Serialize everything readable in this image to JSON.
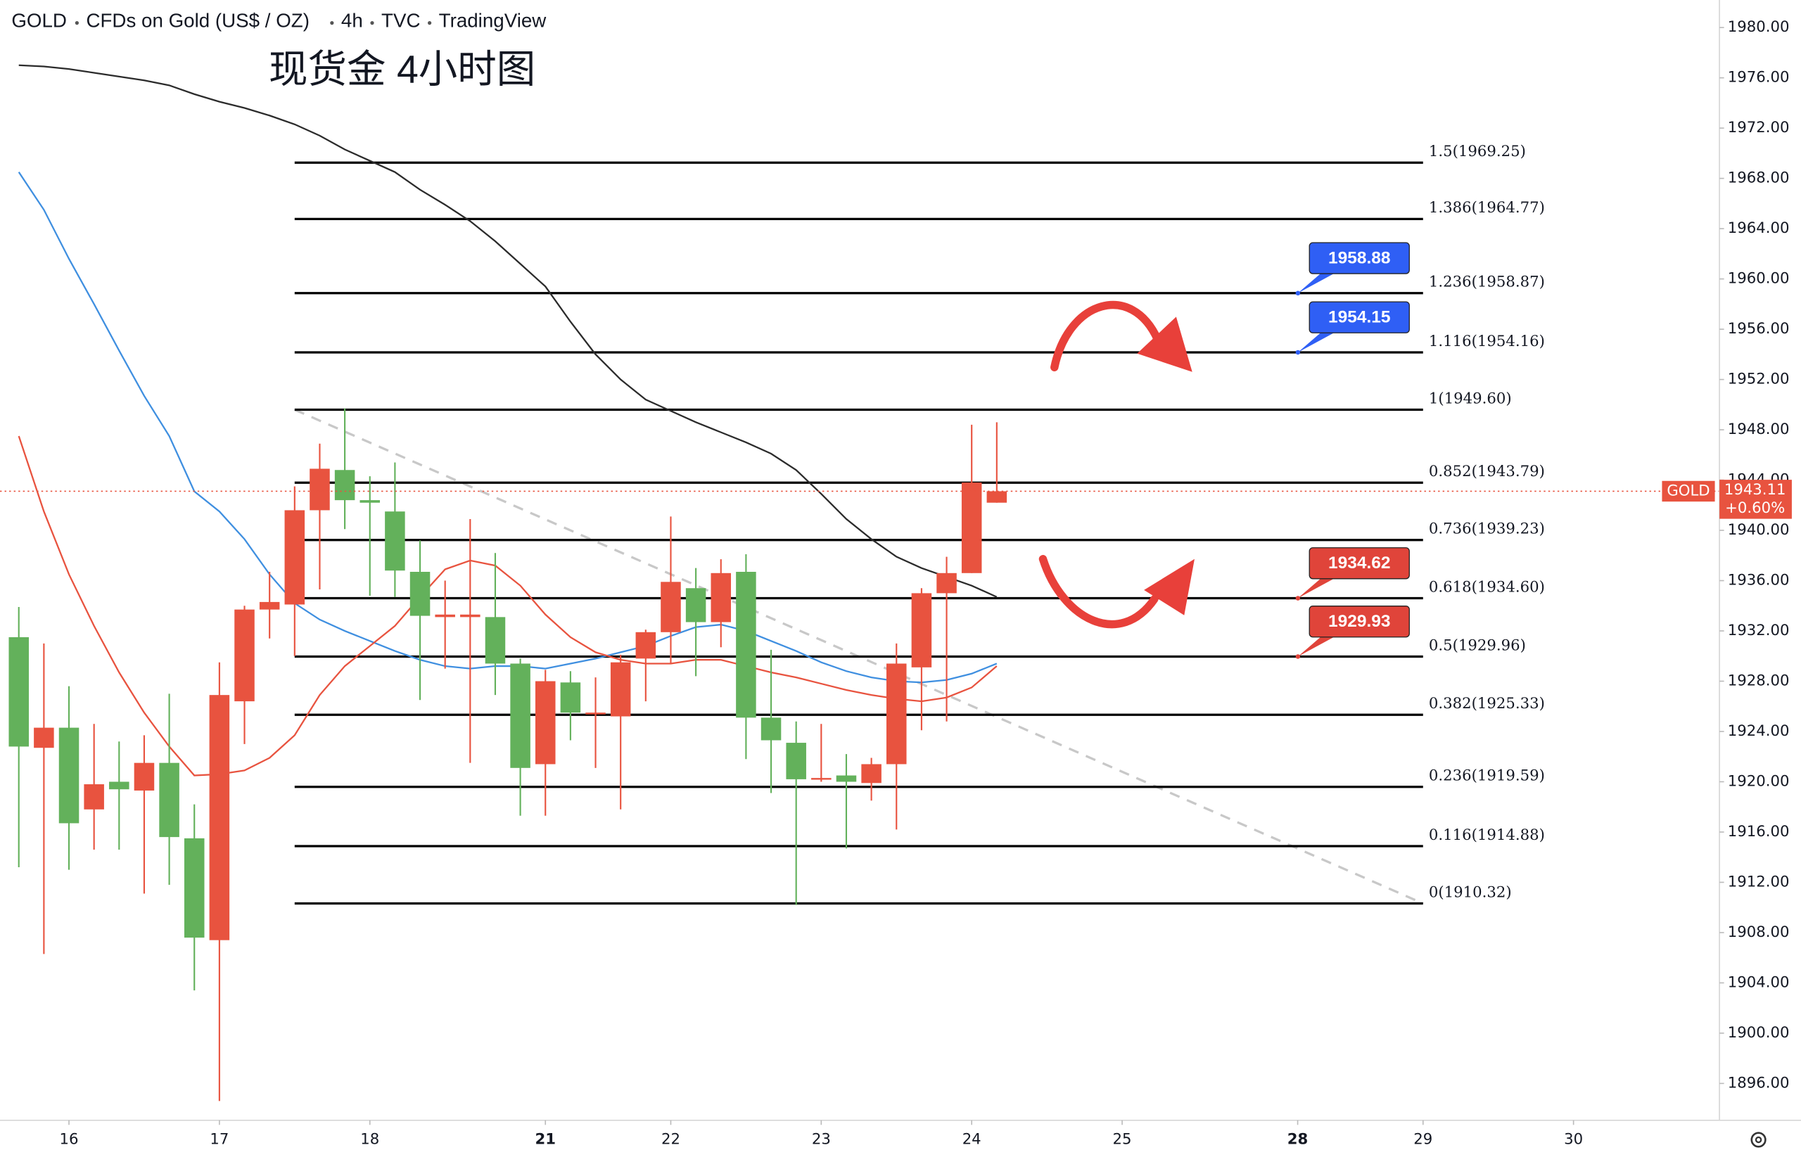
{
  "chart_data": {
    "type": "candlestick",
    "header": [
      "GOLD",
      "CFDs on Gold (US$ / OZ)",
      "4h",
      "TVC",
      "TradingView"
    ],
    "title": "现货金 4小时图",
    "up_color": "#e8533f",
    "down_color": "#63b15b",
    "x": [
      -2,
      -1,
      0,
      1,
      2,
      3,
      4,
      5,
      6,
      7,
      8,
      9,
      10,
      11,
      12,
      13,
      14,
      15,
      16,
      17,
      18,
      19,
      20,
      21,
      22,
      23,
      24,
      25,
      26,
      27,
      28,
      29,
      30,
      31,
      32,
      33,
      34,
      35,
      36,
      37
    ],
    "open": [
      1931.5,
      1922.7,
      1924.3,
      1917.8,
      1920.0,
      1919.3,
      1921.5,
      1915.5,
      1907.4,
      1926.4,
      1933.7,
      1934.1,
      1941.6,
      1944.8,
      1942.4,
      1941.5,
      1936.7,
      1933.1,
      1933.1,
      1933.1,
      1929.4,
      1921.4,
      1927.9,
      1925.4,
      1925.2,
      1929.8,
      1931.9,
      1935.4,
      1932.7,
      1936.7,
      1925.1,
      1923.1,
      1920.2,
      1920.5,
      1919.9,
      1921.4,
      1929.1,
      1935.0,
      1936.6,
      1942.2
    ],
    "high": [
      1933.9,
      1931.0,
      1927.6,
      1924.6,
      1923.2,
      1923.7,
      1927.0,
      1918.2,
      1929.5,
      1934.0,
      1936.7,
      1943.5,
      1946.9,
      1949.7,
      1944.3,
      1945.4,
      1939.2,
      1936.0,
      1940.9,
      1938.2,
      1929.8,
      1928.9,
      1928.8,
      1928.3,
      1930.1,
      1932.1,
      1941.1,
      1937.0,
      1937.7,
      1938.1,
      1930.5,
      1924.8,
      1924.6,
      1922.2,
      1921.9,
      1931.0,
      1935.4,
      1937.9,
      1948.4,
      1948.6
    ],
    "low": [
      1913.2,
      1906.3,
      1913.0,
      1914.6,
      1914.6,
      1911.1,
      1911.8,
      1903.4,
      1894.6,
      1923.0,
      1931.4,
      1930.0,
      1935.3,
      1940.1,
      1934.8,
      1934.7,
      1926.5,
      1929.0,
      1921.5,
      1926.9,
      1917.3,
      1917.3,
      1923.3,
      1921.1,
      1917.8,
      1926.4,
      1929.4,
      1928.4,
      1930.7,
      1921.8,
      1919.1,
      1910.2,
      1920.0,
      1914.7,
      1918.5,
      1916.2,
      1924.1,
      1924.8,
      1936.6,
      1942.2
    ],
    "close": [
      1922.8,
      1924.3,
      1916.7,
      1919.8,
      1919.4,
      1921.5,
      1915.6,
      1907.6,
      1926.9,
      1933.7,
      1934.3,
      1941.6,
      1944.9,
      1942.4,
      1942.2,
      1936.8,
      1933.2,
      1933.3,
      1933.3,
      1929.4,
      1921.1,
      1928.0,
      1925.5,
      1925.5,
      1929.5,
      1931.9,
      1935.9,
      1932.7,
      1936.6,
      1925.1,
      1923.3,
      1920.2,
      1920.3,
      1920.0,
      1921.4,
      1929.4,
      1935.0,
      1936.6,
      1943.8,
      1943.11
    ],
    "series": [
      {
        "color": "#2b2b2b",
        "values": [
          1977.0,
          1976.9,
          1976.7,
          1976.4,
          1976.1,
          1975.8,
          1975.4,
          1974.7,
          1974.1,
          1973.6,
          1973.0,
          1972.3,
          1971.4,
          1970.3,
          1969.4,
          1968.5,
          1967.1,
          1965.9,
          1964.6,
          1963.0,
          1961.2,
          1959.4,
          1956.6,
          1954.0,
          1952.0,
          1950.4,
          1949.5,
          1948.6,
          1947.8,
          1947.0,
          1946.1,
          1944.8,
          1942.9,
          1940.9,
          1939.3,
          1937.9,
          1937.0,
          1936.3,
          1935.6,
          1934.7
        ]
      },
      {
        "color": "#3f8fe0",
        "values": [
          1968.5,
          1965.5,
          1961.6,
          1958.0,
          1954.3,
          1950.7,
          1947.5,
          1943.1,
          1941.5,
          1939.3,
          1936.5,
          1934.2,
          1932.9,
          1932.0,
          1931.2,
          1930.4,
          1929.7,
          1929.2,
          1929.0,
          1929.2,
          1929.2,
          1929.0,
          1929.4,
          1929.8,
          1930.3,
          1930.8,
          1931.6,
          1932.3,
          1932.5,
          1932.0,
          1931.2,
          1930.4,
          1929.5,
          1928.8,
          1928.3,
          1928.0,
          1927.9,
          1928.1,
          1928.6,
          1929.4
        ]
      },
      {
        "color": "#e8533f",
        "values": [
          1947.5,
          1941.5,
          1936.5,
          1932.4,
          1928.7,
          1925.5,
          1922.8,
          1920.5,
          1920.6,
          1920.9,
          1921.9,
          1923.7,
          1926.9,
          1929.2,
          1930.8,
          1932.4,
          1934.7,
          1936.9,
          1937.6,
          1937.2,
          1935.6,
          1933.3,
          1931.5,
          1930.3,
          1929.7,
          1929.4,
          1929.4,
          1929.7,
          1929.7,
          1929.2,
          1928.7,
          1928.3,
          1927.8,
          1927.3,
          1926.9,
          1926.6,
          1926.4,
          1926.7,
          1927.5,
          1929.2
        ]
      }
    ],
    "trendline": {
      "x": [
        9,
        54
      ],
      "values": [
        1949.6,
        1910.32
      ],
      "color": "#c8c8c8"
    },
    "fib_levels": [
      {
        "label": "1.5(1969.25)",
        "value": 1969.25
      },
      {
        "label": "1.386(1964.77)",
        "value": 1964.77
      },
      {
        "label": "1.236(1958.87)",
        "value": 1958.87
      },
      {
        "label": "1.116(1954.16)",
        "value": 1954.16
      },
      {
        "label": "1(1949.60)",
        "value": 1949.6
      },
      {
        "label": "0.852(1943.79)",
        "value": 1943.79
      },
      {
        "label": "0.736(1939.23)",
        "value": 1939.23
      },
      {
        "label": "0.618(1934.60)",
        "value": 1934.6
      },
      {
        "label": "0.5(1929.96)",
        "value": 1929.96
      },
      {
        "label": "0.382(1925.33)",
        "value": 1925.33
      },
      {
        "label": "0.236(1919.59)",
        "value": 1919.59
      },
      {
        "label": "0.116(1914.88)",
        "value": 1914.88
      },
      {
        "label": "0(1910.32)",
        "value": 1910.32
      }
    ],
    "price_tags": [
      {
        "value": 1958.88,
        "color": "#2f5ff5",
        "anchor": 1958.87
      },
      {
        "value": 1954.15,
        "color": "#2f5ff5",
        "anchor": 1954.16
      },
      {
        "value": 1934.62,
        "color": "#e0443a",
        "anchor": 1934.6
      },
      {
        "value": 1929.93,
        "color": "#e0443a",
        "anchor": 1929.96
      }
    ],
    "last_price": {
      "symbol": "GOLD",
      "change": "+0.60%",
      "color": "#e8533f"
    },
    "xlim": [
      -2.75,
      65.82
    ],
    "xticks": [
      {
        "value": 0,
        "label": "16"
      },
      {
        "value": 6,
        "label": "17"
      },
      {
        "value": 12,
        "label": "18"
      },
      {
        "value": 19,
        "label": "21",
        "bold": true
      },
      {
        "value": 24,
        "label": "22"
      },
      {
        "value": 30,
        "label": "23"
      },
      {
        "value": 36,
        "label": "24"
      },
      {
        "value": 42,
        "label": "25"
      },
      {
        "value": 49,
        "label": "28",
        "bold": true
      },
      {
        "value": 54,
        "label": "29"
      },
      {
        "value": 60,
        "label": "30"
      }
    ],
    "ylim": [
      1893.07,
      1982.19
    ],
    "yticks": [
      {
        "value": 1896,
        "label": "1896.00"
      },
      {
        "value": 1900,
        "label": "1900.00"
      },
      {
        "value": 1904,
        "label": "1904.00"
      },
      {
        "value": 1908,
        "label": "1908.00"
      },
      {
        "value": 1912,
        "label": "1912.00"
      },
      {
        "value": 1916,
        "label": "1916.00"
      },
      {
        "value": 1920,
        "label": "1920.00"
      },
      {
        "value": 1924,
        "label": "1924.00"
      },
      {
        "value": 1928,
        "label": "1928.00"
      },
      {
        "value": 1932,
        "label": "1932.00"
      },
      {
        "value": 1936,
        "label": "1936.00"
      },
      {
        "value": 1940,
        "label": "1940.00"
      },
      {
        "value": 1944,
        "label": "1944.00"
      },
      {
        "value": 1948,
        "label": "1948.00"
      },
      {
        "value": 1952,
        "label": "1952.00"
      },
      {
        "value": 1956,
        "label": "1956.00"
      },
      {
        "value": 1960,
        "label": "1960.00"
      },
      {
        "value": 1964,
        "label": "1964.00"
      },
      {
        "value": 1968,
        "label": "1968.00"
      },
      {
        "value": 1972,
        "label": "1972.00"
      },
      {
        "value": 1976,
        "label": "1976.00"
      },
      {
        "value": 1980,
        "label": "1980.00"
      }
    ]
  }
}
